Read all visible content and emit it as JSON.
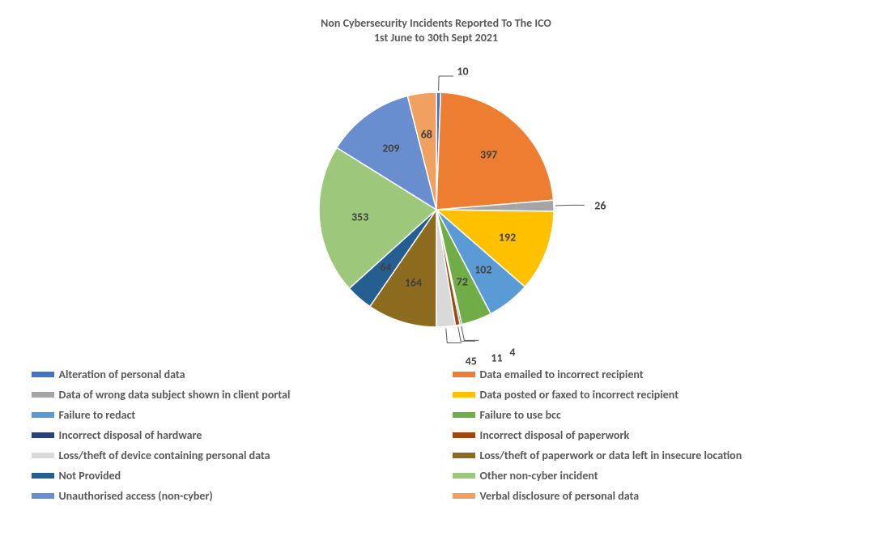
{
  "chart": {
    "type": "pie",
    "title_line1": "Non Cybersecurity Incidents Reported To The ICO",
    "title_line2": "1st June to 30th Sept 2021",
    "title_fontsize": 14,
    "title_color": "#595959",
    "background_color": "#ffffff",
    "label_fontsize": 14,
    "label_color": "#404040",
    "legend_fontsize": 14,
    "legend_color": "#595959",
    "pie_radius": 145,
    "slices": [
      {
        "label": "Alteration of personal data",
        "value": 10,
        "color": "#4472c4"
      },
      {
        "label": "Data emailed to incorrect recipient",
        "value": 397,
        "color": "#ed7d31"
      },
      {
        "label": "Data of wrong data subject shown in client portal",
        "value": 26,
        "color": "#a5a5a5"
      },
      {
        "label": "Data posted or faxed to incorrect recipient",
        "value": 192,
        "color": "#ffc000"
      },
      {
        "label": "Failure to redact",
        "value": 102,
        "color": "#5b9bd5"
      },
      {
        "label": "Failure to use bcc",
        "value": 72,
        "color": "#70ad47"
      },
      {
        "label": "Incorrect disposal of hardware",
        "value": 4,
        "color": "#264478"
      },
      {
        "label": "Incorrect disposal of paperwork",
        "value": 11,
        "color": "#9e480e"
      },
      {
        "label": "Loss/theft of device containing personal data",
        "value": 45,
        "color": "#d9d9d9"
      },
      {
        "label": "Loss/theft of paperwork or data left in insecure location",
        "value": 164,
        "color": "#8c6b1f"
      },
      {
        "label": "Not Provided",
        "value": 64,
        "color": "#255e91"
      },
      {
        "label": "Other non-cyber incident",
        "value": 353,
        "color": "#9dc87c"
      },
      {
        "label": "Unauthorised access (non-cyber)",
        "value": 209,
        "color": "#698ed0"
      },
      {
        "label": "Verbal disclosure of personal data",
        "value": 68,
        "color": "#f1a15f"
      }
    ]
  }
}
